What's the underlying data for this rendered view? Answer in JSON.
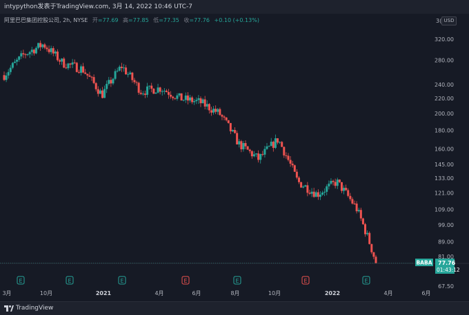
{
  "header": {
    "publish_text": "intypython发表于TradingView.com, 3月 14, 2022 10:46 UTC-7"
  },
  "legend": {
    "symbol": "阿里巴巴集团控股公司, 2h, NYSE",
    "open_label": "开",
    "open": "=77.69",
    "high_label": "高",
    "high": "=77.85",
    "low_label": "低",
    "low": "=77.35",
    "close_label": "收",
    "close": "=77.76",
    "change": "+0.10 (+0.13%)"
  },
  "currency": "USD",
  "price_axis": {
    "ticks": [
      "320.00",
      "280.00",
      "240.00",
      "220.00",
      "200.00",
      "180.00",
      "160.00",
      "145.00",
      "133.00",
      "121.00",
      "109.00",
      "99.00",
      "89.00",
      "81.00"
    ],
    "top_label": "3(",
    "bottom_label": "67.50"
  },
  "time_axis": {
    "labels": [
      {
        "text": "3月",
        "bold": false
      },
      {
        "text": "10月",
        "bold": false
      },
      {
        "text": "2021",
        "bold": true
      },
      {
        "text": "4月",
        "bold": false
      },
      {
        "text": "6月",
        "bold": false
      },
      {
        "text": "8月",
        "bold": false
      },
      {
        "text": "10月",
        "bold": false
      },
      {
        "text": "2022",
        "bold": true
      },
      {
        "text": "4月",
        "bold": false
      },
      {
        "text": "6月",
        "bold": false
      }
    ]
  },
  "earnings_markers": [
    {
      "label": "E",
      "color": "#26a69a"
    },
    {
      "label": "E",
      "color": "#26a69a"
    },
    {
      "label": "E",
      "color": "#26a69a"
    },
    {
      "label": "E",
      "color": "#ef5350"
    },
    {
      "label": "E",
      "color": "#26a69a"
    },
    {
      "label": "E",
      "color": "#ef5350"
    },
    {
      "label": "E",
      "color": "#26a69a"
    }
  ],
  "last_price": {
    "symbol": "BABA",
    "price": "77.76",
    "countdown": "01:43:12",
    "color": "#26a69a"
  },
  "footer": {
    "brand": "TradingView",
    "logo_icon": "tradingview-logo-icon"
  },
  "chart_data": {
    "type": "candlestick",
    "symbol": "BABA",
    "interval": "2h",
    "y_scale": "log",
    "ylim": [
      67.5,
      330
    ],
    "up_color": "#26a69a",
    "down_color": "#ef5350",
    "x": [
      "2020-08",
      "2020-09",
      "2020-10",
      "2020-11",
      "2020-12",
      "2021-01",
      "2021-02",
      "2021-03",
      "2021-04",
      "2021-05",
      "2021-06",
      "2021-07",
      "2021-08",
      "2021-09",
      "2021-10",
      "2021-11",
      "2021-12",
      "2022-01",
      "2022-02",
      "2022-03"
    ],
    "price_path": [
      255,
      290,
      310,
      275,
      265,
      225,
      270,
      230,
      235,
      220,
      215,
      200,
      165,
      150,
      170,
      130,
      120,
      130,
      110,
      78
    ],
    "last_close": 77.76
  }
}
